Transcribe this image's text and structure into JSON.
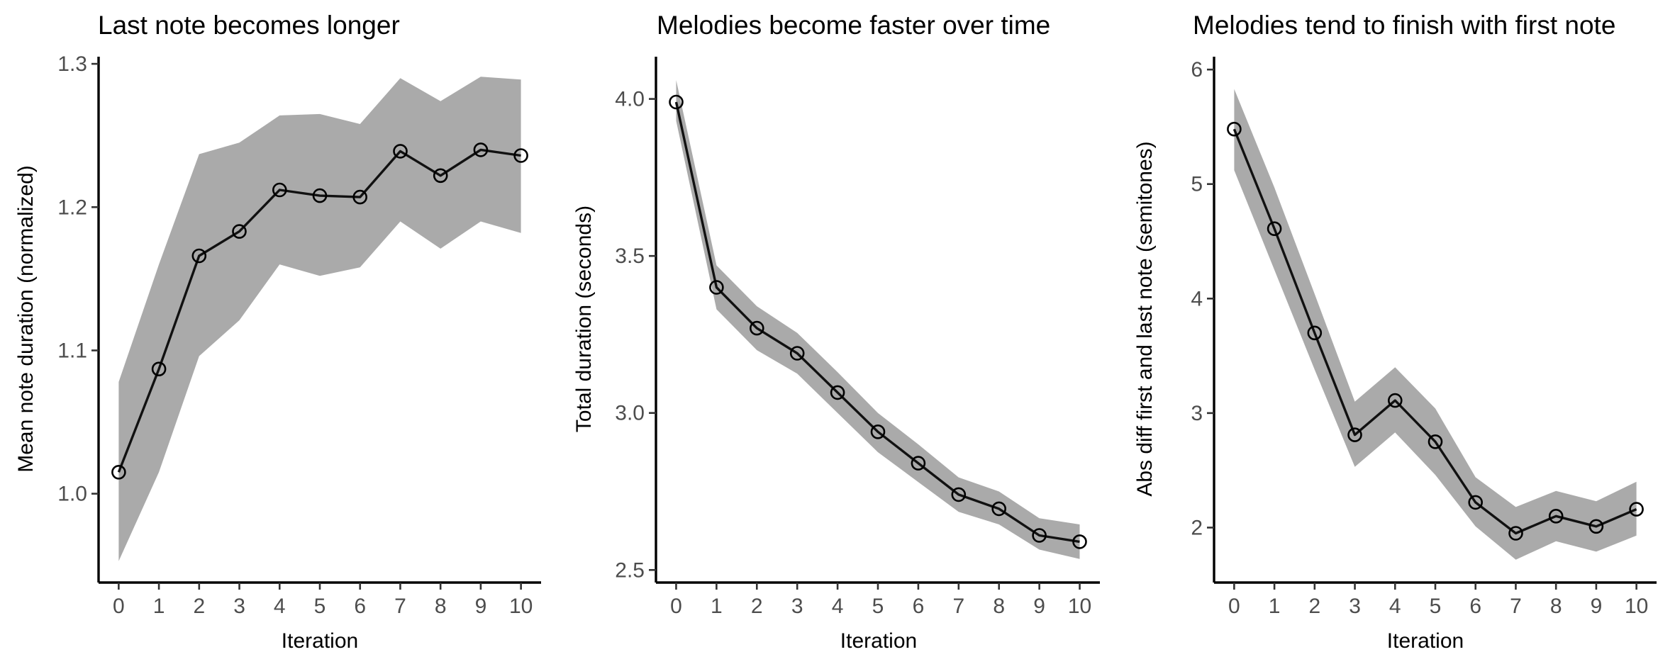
{
  "colors": {
    "band": "#aaaaaa",
    "line": "#111111",
    "marker": "#000000",
    "background": "#ffffff"
  },
  "chart_data": [
    {
      "type": "line",
      "title": "Last note becomes longer",
      "xlabel": "Iteration",
      "ylabel": "Mean note duration (normalized)",
      "x": [
        0,
        1,
        2,
        3,
        4,
        5,
        6,
        7,
        8,
        9,
        10
      ],
      "y": [
        1.015,
        1.087,
        1.166,
        1.183,
        1.212,
        1.208,
        1.207,
        1.239,
        1.222,
        1.24,
        1.236
      ],
      "ci_low": [
        0.953,
        1.015,
        1.096,
        1.121,
        1.16,
        1.152,
        1.158,
        1.19,
        1.171,
        1.19,
        1.182
      ],
      "ci_high": [
        1.078,
        1.16,
        1.237,
        1.245,
        1.264,
        1.265,
        1.258,
        1.29,
        1.274,
        1.291,
        1.289
      ],
      "xlim": [
        -0.5,
        10.5
      ],
      "ylim": [
        0.938,
        1.304
      ],
      "xticks": [
        "0",
        "1",
        "2",
        "3",
        "4",
        "5",
        "6",
        "7",
        "8",
        "9",
        "10"
      ],
      "yticks": [
        1.0,
        1.1,
        1.2,
        1.3
      ],
      "ytick_labels": [
        "1.0",
        "1.1",
        "1.2",
        "1.3"
      ],
      "grid": false,
      "legend": "none"
    },
    {
      "type": "line",
      "title": "Melodies become faster over time",
      "xlabel": "Iteration",
      "ylabel": "Total duration (seconds)",
      "x": [
        0,
        1,
        2,
        3,
        4,
        5,
        6,
        7,
        8,
        9,
        10
      ],
      "y": [
        3.99,
        3.4,
        3.27,
        3.19,
        3.065,
        2.94,
        2.84,
        2.74,
        2.695,
        2.61,
        2.59
      ],
      "ci_low": [
        3.93,
        3.33,
        3.2,
        3.125,
        3.0,
        2.875,
        2.78,
        2.685,
        2.645,
        2.565,
        2.535
      ],
      "ci_high": [
        4.06,
        3.47,
        3.34,
        3.255,
        3.13,
        3.0,
        2.9,
        2.795,
        2.75,
        2.665,
        2.645
      ],
      "xlim": [
        -0.5,
        10.5
      ],
      "ylim": [
        2.46,
        4.13
      ],
      "xticks": [
        "0",
        "1",
        "2",
        "3",
        "4",
        "5",
        "6",
        "7",
        "8",
        "9",
        "10"
      ],
      "yticks": [
        2.5,
        3.0,
        3.5,
        4.0
      ],
      "ytick_labels": [
        "2.5",
        "3.0",
        "3.5",
        "4.0"
      ],
      "grid": false,
      "legend": "none"
    },
    {
      "type": "line",
      "title": "Melodies tend to finish with first note",
      "xlabel": "Iteration",
      "ylabel": "Abs diff first and last note (semitones)",
      "x": [
        0,
        1,
        2,
        3,
        4,
        5,
        6,
        7,
        8,
        9,
        10
      ],
      "y": [
        5.48,
        4.61,
        3.7,
        2.81,
        3.11,
        2.75,
        2.22,
        1.95,
        2.1,
        2.01,
        2.16
      ],
      "ci_low": [
        5.12,
        4.25,
        3.38,
        2.53,
        2.83,
        2.46,
        2.01,
        1.72,
        1.88,
        1.79,
        1.93
      ],
      "ci_high": [
        5.83,
        4.97,
        4.04,
        3.1,
        3.4,
        3.04,
        2.44,
        2.18,
        2.32,
        2.23,
        2.4
      ],
      "xlim": [
        -0.5,
        10.5
      ],
      "ylim": [
        1.52,
        6.1
      ],
      "xticks": [
        "0",
        "1",
        "2",
        "3",
        "4",
        "5",
        "6",
        "7",
        "8",
        "9",
        "10"
      ],
      "yticks": [
        2,
        3,
        4,
        5,
        6
      ],
      "ytick_labels": [
        "2",
        "3",
        "4",
        "5",
        "6"
      ],
      "grid": false,
      "legend": "none"
    }
  ]
}
